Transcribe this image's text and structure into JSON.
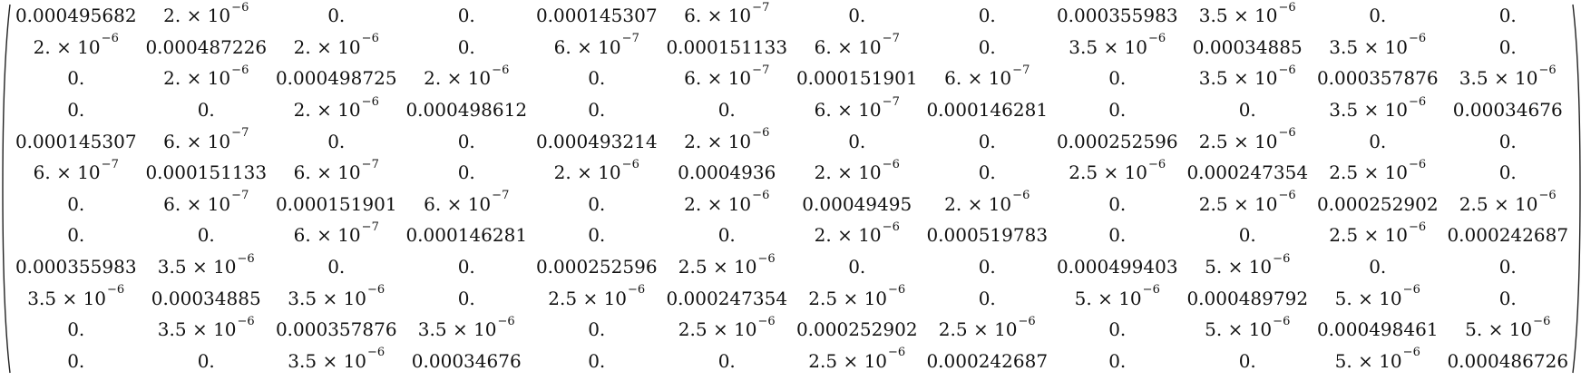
{
  "matrix": {
    "rows": [
      [
        "0.000495682",
        "2.×10^-6",
        "0.",
        "0.",
        "0.000145307",
        "6.×10^-7",
        "0.",
        "0.",
        "0.000355983",
        "3.5×10^-6",
        "0.",
        "0."
      ],
      [
        "2.×10^-6",
        "0.000487226",
        "2.×10^-6",
        "0.",
        "6.×10^-7",
        "0.000151133",
        "6.×10^-7",
        "0.",
        "3.5×10^-6",
        "0.00034885",
        "3.5×10^-6",
        "0."
      ],
      [
        "0.",
        "2.×10^-6",
        "0.000498725",
        "2.×10^-6",
        "0.",
        "6.×10^-7",
        "0.000151901",
        "6.×10^-7",
        "0.",
        "3.5×10^-6",
        "0.000357876",
        "3.5×10^-6"
      ],
      [
        "0.",
        "0.",
        "2.×10^-6",
        "0.000498612",
        "0.",
        "0.",
        "6.×10^-7",
        "0.000146281",
        "0.",
        "0.",
        "3.5×10^-6",
        "0.00034676"
      ],
      [
        "0.000145307",
        "6.×10^-7",
        "0.",
        "0.",
        "0.000493214",
        "2.×10^-6",
        "0.",
        "0.",
        "0.000252596",
        "2.5×10^-6",
        "0.",
        "0."
      ],
      [
        "6.×10^-7",
        "0.000151133",
        "6.×10^-7",
        "0.",
        "2.×10^-6",
        "0.0004936",
        "2.×10^-6",
        "0.",
        "2.5×10^-6",
        "0.000247354",
        "2.5×10^-6",
        "0."
      ],
      [
        "0.",
        "6.×10^-7",
        "0.000151901",
        "6.×10^-7",
        "0.",
        "2.×10^-6",
        "0.00049495",
        "2.×10^-6",
        "0.",
        "2.5×10^-6",
        "0.000252902",
        "2.5×10^-6"
      ],
      [
        "0.",
        "0.",
        "6.×10^-7",
        "0.000146281",
        "0.",
        "0.",
        "2.×10^-6",
        "0.000519783",
        "0.",
        "0.",
        "2.5×10^-6",
        "0.000242687"
      ],
      [
        "0.000355983",
        "3.5×10^-6",
        "0.",
        "0.",
        "0.000252596",
        "2.5×10^-6",
        "0.",
        "0.",
        "0.000499403",
        "5.×10^-6",
        "0.",
        "0."
      ],
      [
        "3.5×10^-6",
        "0.00034885",
        "3.5×10^-6",
        "0.",
        "2.5×10^-6",
        "0.000247354",
        "2.5×10^-6",
        "0.",
        "5.×10^-6",
        "0.000489792",
        "5.×10^-6",
        "0."
      ],
      [
        "0.",
        "3.5×10^-6",
        "0.000357876",
        "3.5×10^-6",
        "0.",
        "2.5×10^-6",
        "0.000252902",
        "2.5×10^-6",
        "0.",
        "5.×10^-6",
        "0.000498461",
        "5.×10^-6"
      ],
      [
        "0.",
        "0.",
        "3.5×10^-6",
        "0.00034676",
        "0.",
        "0.",
        "2.5×10^-6",
        "0.000242687",
        "0.",
        "0.",
        "5.×10^-6",
        "0.000486726"
      ]
    ]
  }
}
